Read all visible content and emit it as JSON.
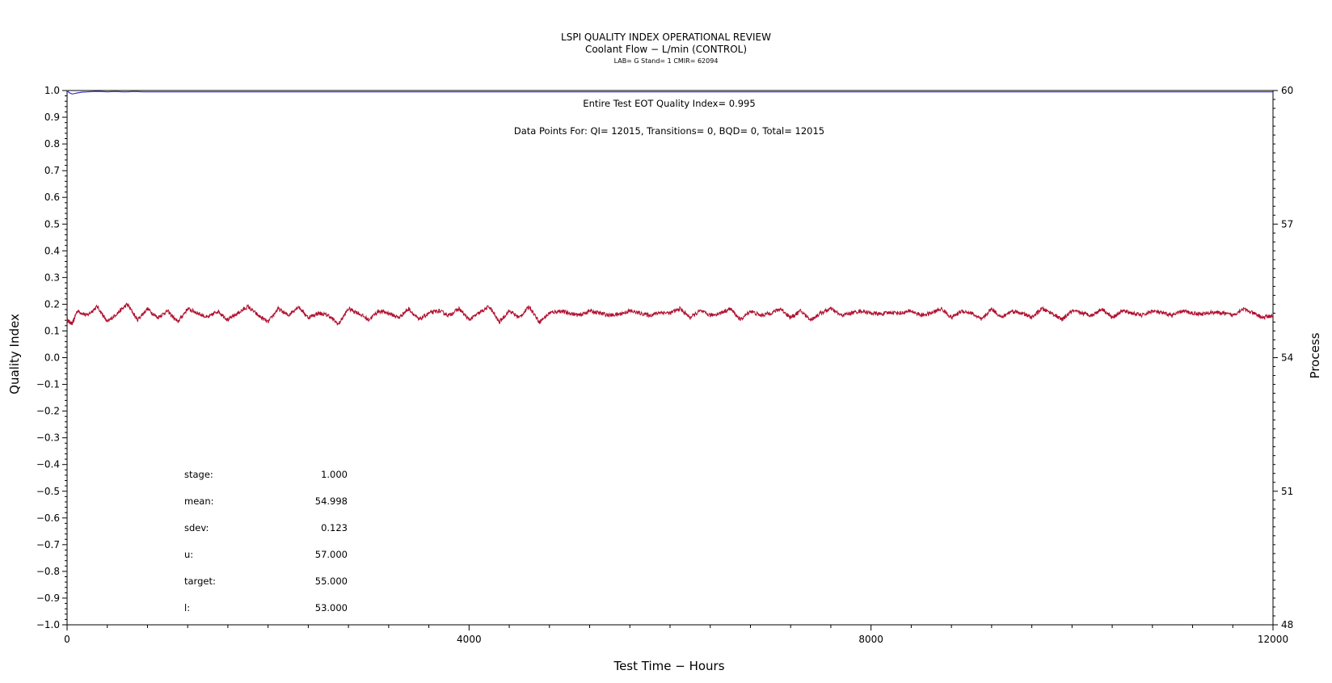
{
  "chart_data": {
    "type": "line",
    "title": "LSPI QUALITY INDEX OPERATIONAL REVIEW",
    "subtitle": "Coolant Flow − L/min (CONTROL)",
    "subtitle2": "LAB= G Stand= 1 CMIR= 62094",
    "xlabel": "Test Time − Hours",
    "ylabel_left": "Quality Index",
    "ylabel_right": "Process",
    "xlim": [
      0,
      12000
    ],
    "ylim_left": [
      -1.0,
      1.0
    ],
    "ylim_right": [
      48,
      60
    ],
    "x_ticks": [
      "0",
      "4000",
      "8000",
      "12000"
    ],
    "x_tick_values": [
      0,
      4000,
      8000,
      12000
    ],
    "y_ticks_left": [
      "1.0",
      "0.9",
      "0.8",
      "0.7",
      "0.6",
      "0.5",
      "0.4",
      "0.3",
      "0.2",
      "0.1",
      "0.0",
      "−0.1",
      "−0.2",
      "−0.3",
      "−0.4",
      "−0.5",
      "−0.6",
      "−0.7",
      "−0.8",
      "−0.9",
      "−1.0"
    ],
    "y_tick_values_left": [
      1.0,
      0.9,
      0.8,
      0.7,
      0.6,
      0.5,
      0.4,
      0.3,
      0.2,
      0.1,
      0.0,
      -0.1,
      -0.2,
      -0.3,
      -0.4,
      -0.5,
      -0.6,
      -0.7,
      -0.8,
      -0.9,
      -1.0
    ],
    "y_ticks_right": [
      "60",
      "57",
      "54",
      "51",
      "48"
    ],
    "y_tick_values_right": [
      60,
      57,
      54,
      51,
      48
    ],
    "annotation_qi": "Entire Test EOT Quality Index=   0.995",
    "annotation_points": "Data Points For: QI= 12015, Transitions=     0, BQD=     0, Total= 12015",
    "stats": [
      {
        "label": "stage:",
        "value": "1.000"
      },
      {
        "label": "mean:",
        "value": "54.998"
      },
      {
        "label": "sdev:",
        "value": "0.123"
      },
      {
        "label": "u:",
        "value": "57.000"
      },
      {
        "label": "target:",
        "value": "55.000"
      },
      {
        "label": "l:",
        "value": "53.000"
      }
    ],
    "series": [
      {
        "axis": "left",
        "color": "#3333cc",
        "x": [
          0,
          20,
          50,
          80,
          100,
          150,
          200,
          250,
          300,
          350,
          400,
          450,
          500,
          550,
          600,
          650,
          700,
          750,
          800,
          12000
        ],
        "y": [
          1.0,
          0.992,
          0.987,
          0.989,
          0.991,
          0.994,
          0.995,
          0.996,
          0.997,
          0.996,
          0.995,
          0.996,
          0.996,
          0.995,
          0.995,
          0.996,
          0.996,
          0.995,
          0.995,
          0.995
        ]
      },
      {
        "axis": "right",
        "color": "#b01030",
        "x": [
          0,
          50,
          100,
          200,
          300,
          400,
          500,
          600,
          700,
          800,
          900,
          1000,
          1100,
          1200,
          1300,
          1400,
          1500,
          1600,
          1700,
          1800,
          1900,
          2000,
          2100,
          2200,
          2300,
          2400,
          2500,
          2600,
          2700,
          2800,
          2900,
          3000,
          3100,
          3200,
          3300,
          3400,
          3500,
          3600,
          3700,
          3800,
          3900,
          4000,
          4100,
          4200,
          4300,
          4400,
          4500,
          4600,
          4700,
          4800,
          4900,
          5000,
          5100,
          5200,
          5300,
          5400,
          5500,
          5600,
          5700,
          5800,
          5900,
          6000,
          6100,
          6200,
          6300,
          6400,
          6500,
          6600,
          6700,
          6800,
          6900,
          7000,
          7100,
          7200,
          7300,
          7400,
          7500,
          7600,
          7700,
          7800,
          7900,
          8000,
          8100,
          8200,
          8300,
          8400,
          8500,
          8600,
          8700,
          8800,
          8900,
          9000,
          9100,
          9200,
          9300,
          9400,
          9500,
          9600,
          9700,
          9800,
          9900,
          10000,
          10100,
          10200,
          10300,
          10400,
          10500,
          10600,
          10700,
          10800,
          10900,
          11000,
          11100,
          11200,
          11300,
          11400,
          11500,
          11600,
          11700,
          11800,
          11900,
          12000
        ],
        "y": [
          54.85,
          54.75,
          55.05,
          54.95,
          55.15,
          54.8,
          55.0,
          55.2,
          54.85,
          55.1,
          54.9,
          55.05,
          54.8,
          55.1,
          55.0,
          54.9,
          55.05,
          54.85,
          55.0,
          55.15,
          54.95,
          54.8,
          55.1,
          54.95,
          55.15,
          54.9,
          55.0,
          54.95,
          54.75,
          55.1,
          55.0,
          54.85,
          55.05,
          55.0,
          54.9,
          55.1,
          54.85,
          55.0,
          55.05,
          54.95,
          55.1,
          54.85,
          55.0,
          55.15,
          54.8,
          55.05,
          54.9,
          55.15,
          54.8,
          55.0,
          55.05,
          55.0,
          54.95,
          55.05,
          55.0,
          54.95,
          54.98,
          55.05,
          55.0,
          54.95,
          55.02,
          55.0,
          55.1,
          54.9,
          55.05,
          54.95,
          55.0,
          55.1,
          54.85,
          55.05,
          54.95,
          55.0,
          55.1,
          54.9,
          55.05,
          54.85,
          55.0,
          55.1,
          54.95,
          55.0,
          55.05,
          55.0,
          54.98,
          55.02,
          55.0,
          55.05,
          54.95,
          55.0,
          55.1,
          54.9,
          55.05,
          55.0,
          54.85,
          55.1,
          54.9,
          55.05,
          55.0,
          54.9,
          55.1,
          55.0,
          54.85,
          55.05,
          55.0,
          54.95,
          55.1,
          54.9,
          55.05,
          55.0,
          54.95,
          55.05,
          55.0,
          54.95,
          55.05,
          55.0,
          54.98,
          55.02,
          55.0,
          54.95,
          55.1,
          55.0,
          54.9,
          54.95
        ]
      }
    ],
    "grid": false,
    "legend": "none"
  }
}
